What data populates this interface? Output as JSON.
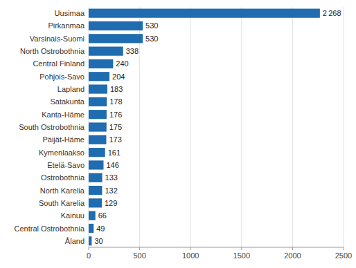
{
  "chart_data": {
    "type": "bar",
    "orientation": "horizontal",
    "categories": [
      "Uusimaa",
      "Pirkanmaa",
      "Varsinais-Suomi",
      "North Ostrobothnia",
      "Central Finland",
      "Pohjois-Savo",
      "Lapland",
      "Satakunta",
      "Kanta-Häme",
      "South Ostrobothnia",
      "Päijät-Häme",
      "Kymenlaakso",
      "Etelä-Savo",
      "Ostrobothnia",
      "North Karelia",
      "South Karelia",
      "Kainuu",
      "Central Ostrobothnia",
      "Åland"
    ],
    "values": [
      2268,
      530,
      530,
      338,
      240,
      204,
      183,
      178,
      176,
      175,
      173,
      161,
      146,
      133,
      132,
      129,
      66,
      49,
      30
    ],
    "value_labels": [
      "2 268",
      "530",
      "530",
      "338",
      "240",
      "204",
      "183",
      "178",
      "176",
      "175",
      "173",
      "161",
      "146",
      "133",
      "132",
      "129",
      "66",
      "49",
      "30"
    ],
    "data_labels": true,
    "color": "#1f6cb0",
    "xlim": [
      0,
      2500
    ],
    "xticks": [
      0,
      500,
      1000,
      1500,
      2000,
      2500
    ],
    "grid": true
  }
}
